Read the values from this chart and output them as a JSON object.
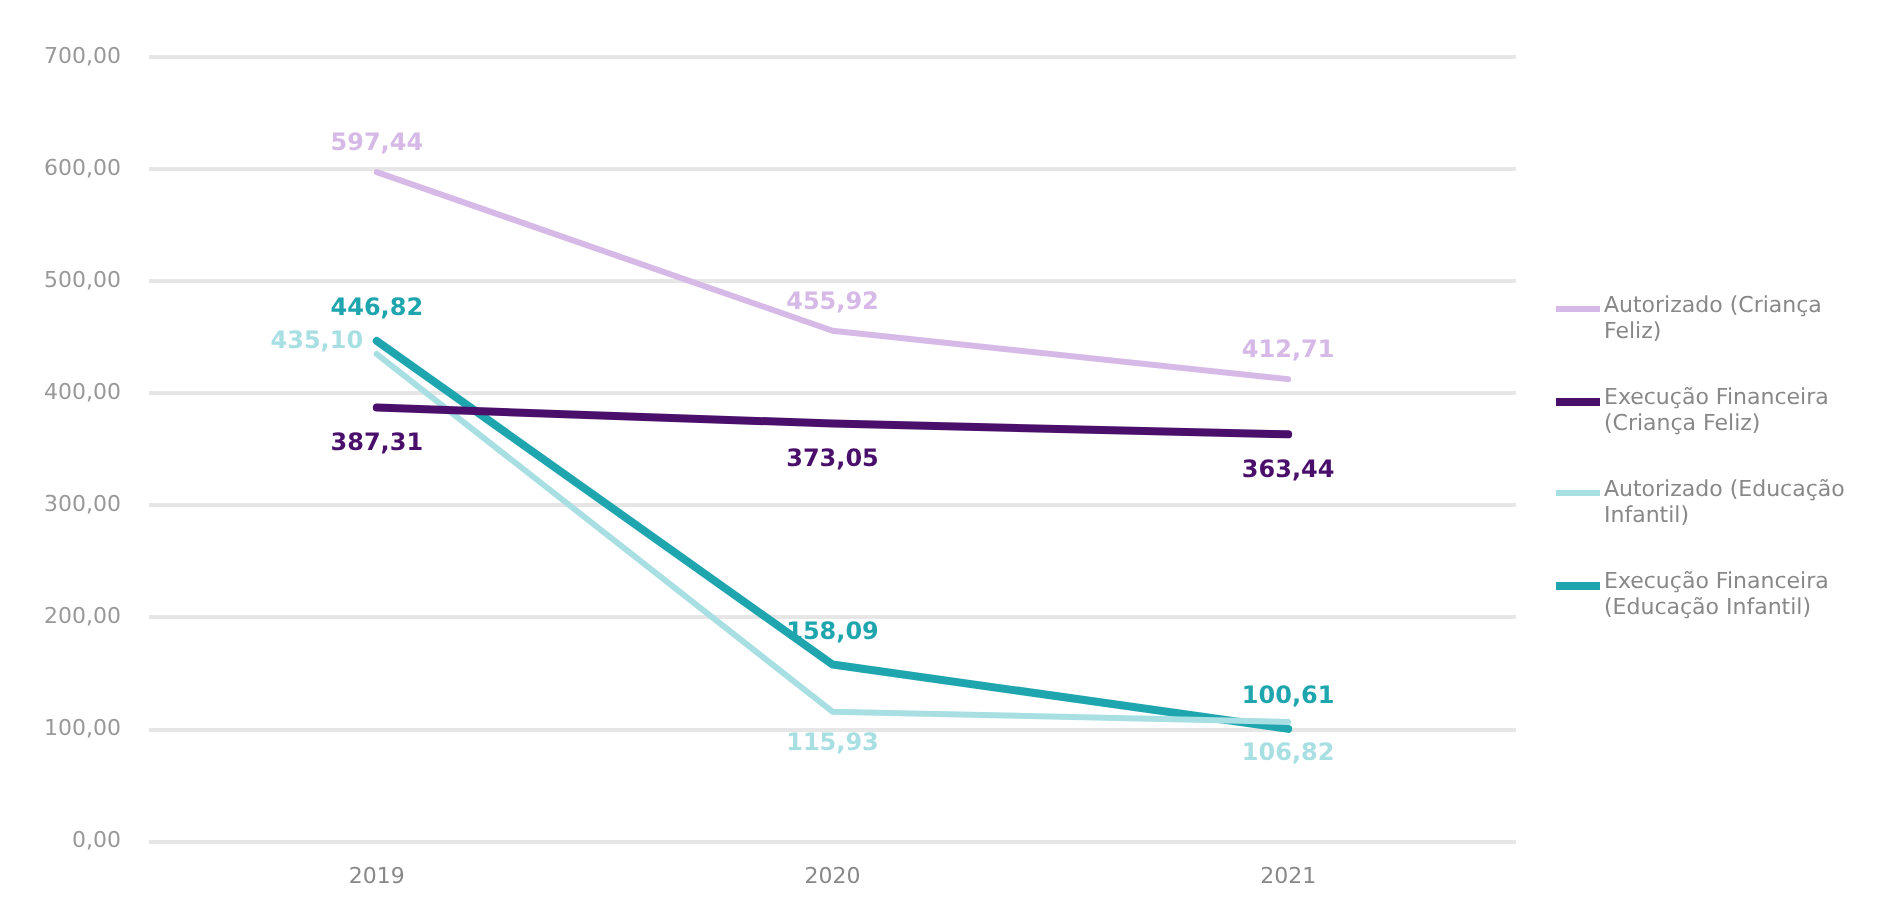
{
  "chart_data": {
    "type": "line",
    "categories": [
      "2019",
      "2020",
      "2021"
    ],
    "series": [
      {
        "name": "Autorizado (Criança Feliz)",
        "color": "#d6b9e6",
        "values": [
          597.44,
          455.92,
          412.71
        ],
        "value_labels": [
          "597,44",
          "455,92",
          "412,71"
        ]
      },
      {
        "name": "Execução Financeira (Criança Feliz)",
        "color": "#4a0e6b",
        "values": [
          387.31,
          373.05,
          363.44
        ],
        "value_labels": [
          "387,31",
          "373,05",
          "363,44"
        ]
      },
      {
        "name": "Autorizado (Educação Infantil)",
        "color": "#a8dfe3",
        "values": [
          435.1,
          115.93,
          106.82
        ],
        "value_labels": [
          "435,10",
          "115,93",
          "106,82"
        ]
      },
      {
        "name": "Execução Financeira (Educação Infantil)",
        "color": "#1fa5ae",
        "values": [
          446.82,
          158.09,
          100.61
        ],
        "value_labels": [
          "446,82",
          "158,09",
          "100,61"
        ]
      }
    ],
    "ylim": [
      0,
      700
    ],
    "yticks": [
      {
        "value": 0,
        "label": "0,00"
      },
      {
        "value": 100,
        "label": "100,00"
      },
      {
        "value": 200,
        "label": "200,00"
      },
      {
        "value": 300,
        "label": "300,00"
      },
      {
        "value": 400,
        "label": "400,00"
      },
      {
        "value": 500,
        "label": "500,00"
      },
      {
        "value": 600,
        "label": "600,00"
      },
      {
        "value": 700,
        "label": "700,00"
      }
    ],
    "grid": "y",
    "legend": "right",
    "marker": "none",
    "line_style": "solid"
  }
}
